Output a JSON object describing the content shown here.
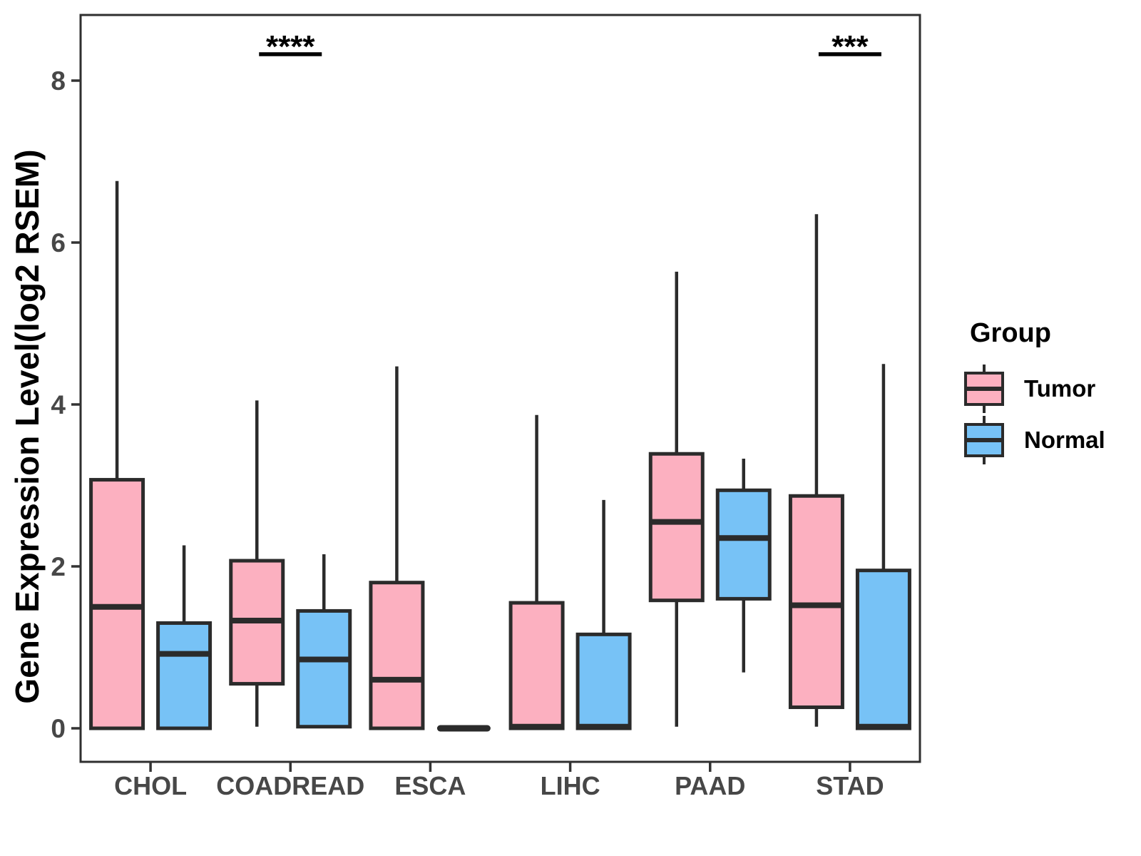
{
  "chart_data": {
    "type": "boxplot",
    "title": "",
    "xlabel": "",
    "ylabel": "Gene Expression Level(log2 RSEM)",
    "ylim": [
      -0.41,
      8.81
    ],
    "yticks": [
      0,
      2,
      4,
      6,
      8
    ],
    "grid": false,
    "categories": [
      "CHOL",
      "COADREAD",
      "ESCA",
      "LIHC",
      "PAAD",
      "STAD"
    ],
    "series": [
      {
        "name": "Tumor",
        "color": "#FCB0C0",
        "boxes": [
          {
            "category": "CHOL",
            "whisker_low": 0,
            "q1": 0,
            "median": 1.5,
            "q3": 3.07,
            "whisker_high": 6.76
          },
          {
            "category": "COADREAD",
            "whisker_low": 0.02,
            "q1": 0.55,
            "median": 1.33,
            "q3": 2.07,
            "whisker_high": 4.05
          },
          {
            "category": "ESCA",
            "whisker_low": 0,
            "q1": 0,
            "median": 0.6,
            "q3": 1.8,
            "whisker_high": 4.47
          },
          {
            "category": "LIHC",
            "whisker_low": 0,
            "q1": 0,
            "median": 0.02,
            "q3": 1.55,
            "whisker_high": 3.87
          },
          {
            "category": "PAAD",
            "whisker_low": 0.02,
            "q1": 1.58,
            "median": 2.55,
            "q3": 3.39,
            "whisker_high": 5.64
          },
          {
            "category": "STAD",
            "whisker_low": 0.02,
            "q1": 0.26,
            "median": 1.52,
            "q3": 2.87,
            "whisker_high": 6.35
          }
        ]
      },
      {
        "name": "Normal",
        "color": "#77C2F6",
        "boxes": [
          {
            "category": "CHOL",
            "whisker_low": 0,
            "q1": 0,
            "median": 0.92,
            "q3": 1.3,
            "whisker_high": 2.26
          },
          {
            "category": "COADREAD",
            "whisker_low": 0.02,
            "q1": 0.02,
            "median": 0.85,
            "q3": 1.45,
            "whisker_high": 2.15
          },
          {
            "category": "ESCA",
            "whisker_low": 0,
            "q1": 0,
            "median": 0,
            "q3": 0,
            "whisker_high": 0
          },
          {
            "category": "LIHC",
            "whisker_low": 0,
            "q1": 0,
            "median": 0.02,
            "q3": 1.16,
            "whisker_high": 2.82
          },
          {
            "category": "PAAD",
            "whisker_low": 0.69,
            "q1": 1.6,
            "median": 2.35,
            "q3": 2.94,
            "whisker_high": 3.33
          },
          {
            "category": "STAD",
            "whisker_low": 0,
            "q1": 0,
            "median": 0.02,
            "q3": 1.95,
            "whisker_high": 4.5
          }
        ]
      }
    ],
    "significance": [
      {
        "category": "COADREAD",
        "label": "****"
      },
      {
        "category": "STAD",
        "label": "***"
      }
    ],
    "legend": {
      "title": "Group",
      "position": "right"
    },
    "colors": {
      "stroke": "#2B2B2B",
      "panel_border": "#2F2F2F",
      "tick": "#333333",
      "axis_text": "#474747",
      "annotation": "#000000"
    }
  }
}
